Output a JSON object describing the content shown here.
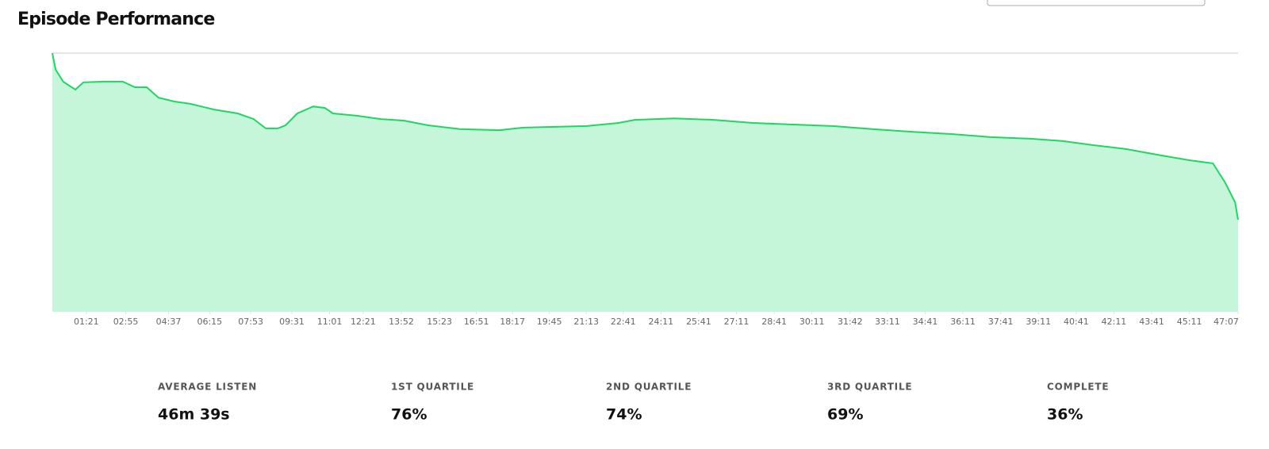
{
  "chart_data": {
    "type": "area",
    "title": "Episode Performance",
    "x": [
      0,
      8,
      26,
      55,
      74,
      121,
      168,
      197,
      225,
      253,
      291,
      329,
      386,
      442,
      480,
      509,
      537,
      556,
      584,
      622,
      650,
      669,
      726,
      783,
      839,
      896,
      972,
      1066,
      1123,
      1198,
      1274,
      1350,
      1388,
      1482,
      1577,
      1671,
      1766,
      1860,
      1955,
      2049,
      2144,
      2238,
      2333,
      2408,
      2484,
      2560,
      2635,
      2711,
      2767,
      2796,
      2820,
      2827
    ],
    "values": [
      100,
      93.6,
      89,
      85.9,
      88.7,
      89,
      89,
      86.8,
      86.8,
      82.8,
      81.3,
      80.4,
      78.2,
      76.7,
      74.5,
      70.9,
      70.9,
      72.1,
      76.7,
      79.4,
      78.8,
      76.7,
      75.8,
      74.5,
      73.9,
      72.1,
      70.6,
      70.2,
      71.2,
      71.5,
      71.8,
      73,
      74.2,
      74.8,
      74.2,
      73,
      72.4,
      71.8,
      70.6,
      69.6,
      68.7,
      67.5,
      66.9,
      66,
      64.4,
      62.9,
      60.7,
      58.6,
      57.4,
      50,
      42.3,
      35.6
    ],
    "color": "#1ed760",
    "fill": "#c6f6d9",
    "xlim": [
      0,
      2827
    ],
    "ylim": [
      0,
      100
    ],
    "xticks": [
      {
        "value": 81,
        "label": "01:21"
      },
      {
        "value": 175,
        "label": "02:55"
      },
      {
        "value": 277,
        "label": "04:37"
      },
      {
        "value": 375,
        "label": "06:15"
      },
      {
        "value": 473,
        "label": "07:53"
      },
      {
        "value": 571,
        "label": "09:31"
      },
      {
        "value": 661,
        "label": "11:01"
      },
      {
        "value": 741,
        "label": "12:21"
      },
      {
        "value": 832,
        "label": "13:52"
      },
      {
        "value": 923,
        "label": "15:23"
      },
      {
        "value": 1011,
        "label": "16:51"
      },
      {
        "value": 1097,
        "label": "18:17"
      },
      {
        "value": 1185,
        "label": "19:45"
      },
      {
        "value": 1273,
        "label": "21:13"
      },
      {
        "value": 1361,
        "label": "22:41"
      },
      {
        "value": 1451,
        "label": "24:11"
      },
      {
        "value": 1541,
        "label": "25:41"
      },
      {
        "value": 1631,
        "label": "27:11"
      },
      {
        "value": 1721,
        "label": "28:41"
      },
      {
        "value": 1811,
        "label": "30:11"
      },
      {
        "value": 1902,
        "label": "31:42"
      },
      {
        "value": 1991,
        "label": "33:11"
      },
      {
        "value": 2081,
        "label": "34:41"
      },
      {
        "value": 2171,
        "label": "36:11"
      },
      {
        "value": 2261,
        "label": "37:41"
      },
      {
        "value": 2351,
        "label": "39:11"
      },
      {
        "value": 2441,
        "label": "40:41"
      },
      {
        "value": 2531,
        "label": "42:11"
      },
      {
        "value": 2621,
        "label": "43:41"
      },
      {
        "value": 2711,
        "label": "45:11"
      },
      {
        "value": 2827,
        "label": "47:07"
      }
    ]
  },
  "stats": [
    {
      "label": "AVERAGE LISTEN",
      "value": "46m 39s"
    },
    {
      "label": "1ST QUARTILE",
      "value": "76%"
    },
    {
      "label": "2ND QUARTILE",
      "value": "74%"
    },
    {
      "label": "3RD QUARTILE",
      "value": "69%"
    },
    {
      "label": "COMPLETE",
      "value": "36%"
    }
  ]
}
